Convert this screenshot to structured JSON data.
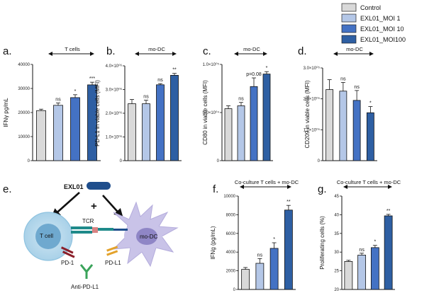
{
  "legend": [
    {
      "label": "Control",
      "color": "#d9d9d9"
    },
    {
      "label": "EXL01_MOI 1",
      "color": "#b4c7e7"
    },
    {
      "label": "EXL01_MOI 10",
      "color": "#4472c4"
    },
    {
      "label": "EXL01_MOI100",
      "color": "#2e5fa3"
    }
  ],
  "chart_data": [
    {
      "type": "bar",
      "panel": "a.",
      "title": "T cells",
      "ylabel": "IFNγ pg/mL",
      "categories": [
        "Control",
        "EXL01_MOI 1",
        "EXL01_MOI 10",
        "EXL01_MOI100"
      ],
      "values": [
        20800,
        23000,
        26200,
        31500
      ],
      "errors": [
        600,
        1000,
        1200,
        1100
      ],
      "significance": [
        "",
        "ns",
        "*",
        "***"
      ],
      "ylim": [
        0,
        40000
      ],
      "yticks": [
        0,
        10000,
        20000,
        30000,
        40000
      ],
      "ytick_labels": [
        "0",
        "10000",
        "20000",
        "30000",
        "40000"
      ]
    },
    {
      "type": "bar",
      "panel": "b.",
      "title": "mo-DC",
      "ylabel": "PD-L1 in viable cells (MFI)",
      "categories": [
        "Control",
        "EXL01_MOI 1",
        "EXL01_MOI 10",
        "EXL01_MOI100"
      ],
      "values": [
        2400000.0,
        2400000.0,
        3200000.0,
        3600000.0
      ],
      "errors": [
        180000.0,
        150000.0,
        50000.0,
        80000.0
      ],
      "significance": [
        "",
        "ns",
        "ns",
        "**"
      ],
      "ylim": [
        0,
        4000000.0
      ],
      "yticks": [
        0,
        1000000.0,
        2000000.0,
        3000000.0,
        4000000.0
      ],
      "ytick_labels": [
        "0",
        "1.0×10⁰⁶",
        "2.0×10⁰⁶",
        "3.0×10⁰⁶",
        "4.0×10⁰⁶"
      ]
    },
    {
      "type": "bar",
      "panel": "c.",
      "title": "mo-DC",
      "ylabel": "CD80 in viable cells (MFI)",
      "categories": [
        "Control",
        "EXL01_MOI 1",
        "EXL01_MOI 10",
        "EXL01_MOI100"
      ],
      "values": [
        54000,
        57000,
        77000,
        90000
      ],
      "errors": [
        3000,
        3500,
        9000,
        2500
      ],
      "significance": [
        "",
        "ns",
        "p=0.08",
        "*"
      ],
      "ylim": [
        0,
        100000
      ],
      "yticks": [
        0,
        50000,
        100000
      ],
      "ytick_labels": [
        "0",
        "5.0×10⁰⁴",
        "1.0×10⁰⁵"
      ]
    },
    {
      "type": "bar",
      "panel": "d.",
      "title": "mo-DC",
      "ylabel": "CD209 in viable cells (MFI)",
      "categories": [
        "Control",
        "EXL01_MOI 1",
        "EXL01_MOI 10",
        "EXL01_MOI100"
      ],
      "values": [
        230000,
        225000,
        195000,
        155000
      ],
      "errors": [
        32000,
        28000,
        32000,
        20000
      ],
      "significance": [
        "",
        "ns",
        "ns",
        "*"
      ],
      "ylim": [
        0,
        300000
      ],
      "yticks": [
        0,
        100000,
        200000,
        300000
      ],
      "ytick_labels": [
        "0",
        "1.0×10⁰⁵",
        "2.0×10⁰⁵",
        "3.0×10⁰⁵"
      ]
    },
    {
      "type": "bar",
      "panel": "f.",
      "title": "Co-culture T cells + mo-DC",
      "ylabel": "IFNg (pg/mL)",
      "categories": [
        "Control",
        "EXL01_MOI 1",
        "EXL01_MOI 10",
        "EXL01_MOI100"
      ],
      "values": [
        2150,
        2800,
        4400,
        8500
      ],
      "errors": [
        200,
        500,
        600,
        500
      ],
      "significance": [
        "",
        "ns",
        "*",
        "**"
      ],
      "ylim": [
        0,
        10000
      ],
      "yticks": [
        0,
        2000,
        4000,
        6000,
        8000,
        10000
      ],
      "ytick_labels": [
        "0",
        "2000",
        "4000",
        "6000",
        "8000",
        "10000"
      ]
    },
    {
      "type": "bar",
      "panel": "g.",
      "title": "Co-culture T cells + mo-DC",
      "ylabel": "Proliferating cells (%)",
      "categories": [
        "Control",
        "EXL01_MOI 1",
        "EXL01_MOI 10",
        "EXL01_MOI100"
      ],
      "values": [
        27.5,
        29.2,
        31.2,
        39.7
      ],
      "errors": [
        0.3,
        0.5,
        0.6,
        0.4
      ],
      "significance": [
        "",
        "ns",
        "*",
        "**"
      ],
      "ylim": [
        20,
        45
      ],
      "yticks": [
        20,
        25,
        30,
        35,
        40,
        45
      ],
      "ytick_labels": [
        "20",
        "25",
        "30",
        "35",
        "40",
        "45"
      ]
    }
  ],
  "schematic": {
    "panel": "e.",
    "agent": "EXL01",
    "plus": "+",
    "tcell": "T cell",
    "modc": "mo-DC",
    "tcr": "TCR",
    "pd1": "PD-1",
    "pdl1": "PD-L1",
    "antipdl1": "Anti-PD-L1"
  }
}
